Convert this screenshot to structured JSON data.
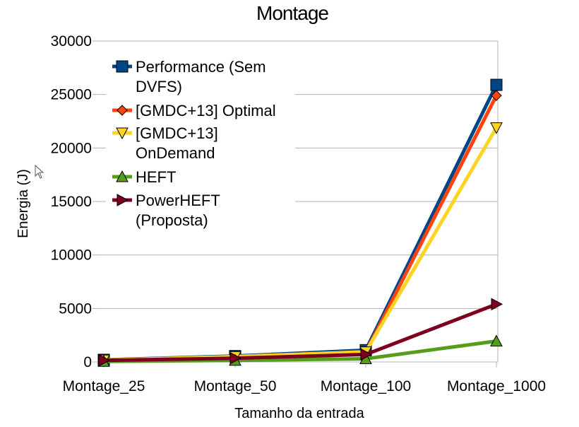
{
  "chart_data": {
    "type": "line",
    "title": "Montage",
    "xlabel": "Tamanho da entrada",
    "ylabel": "Energia (J)",
    "categories": [
      "Montage_25",
      "Montage_50",
      "Montage_100",
      "Montage_1000"
    ],
    "ylim": [
      0,
      30000
    ],
    "yticks": [
      0,
      5000,
      10000,
      15000,
      20000,
      25000,
      30000
    ],
    "grid": true,
    "legend_position": "top-left",
    "series": [
      {
        "name": "Performance (Sem DVFS)",
        "legend_lines": [
          "Performance (Sem",
          "DVFS)"
        ],
        "color": "#004586",
        "marker": "square",
        "values": [
          200,
          550,
          1100,
          25900
        ]
      },
      {
        "name": "[GMDC+13] Optimal",
        "legend_lines": [
          "[GMDC+13] Optimal"
        ],
        "color": "#ff420e",
        "marker": "diamond",
        "values": [
          150,
          450,
          900,
          24900
        ]
      },
      {
        "name": "[GMDC+13] OnDemand",
        "legend_lines": [
          "[GMDC+13]",
          "OnDemand"
        ],
        "color": "#ffd320",
        "marker": "triangle-down",
        "values": [
          180,
          500,
          950,
          21900
        ]
      },
      {
        "name": "HEFT",
        "legend_lines": [
          "HEFT"
        ],
        "color": "#579d1c",
        "marker": "triangle-up",
        "values": [
          50,
          150,
          300,
          1950
        ]
      },
      {
        "name": "PowerHEFT (Proposta)",
        "legend_lines": [
          "PowerHEFT",
          "(Proposta)"
        ],
        "color": "#7e0021",
        "marker": "triangle-right",
        "values": [
          150,
          350,
          700,
          5400
        ]
      }
    ]
  }
}
